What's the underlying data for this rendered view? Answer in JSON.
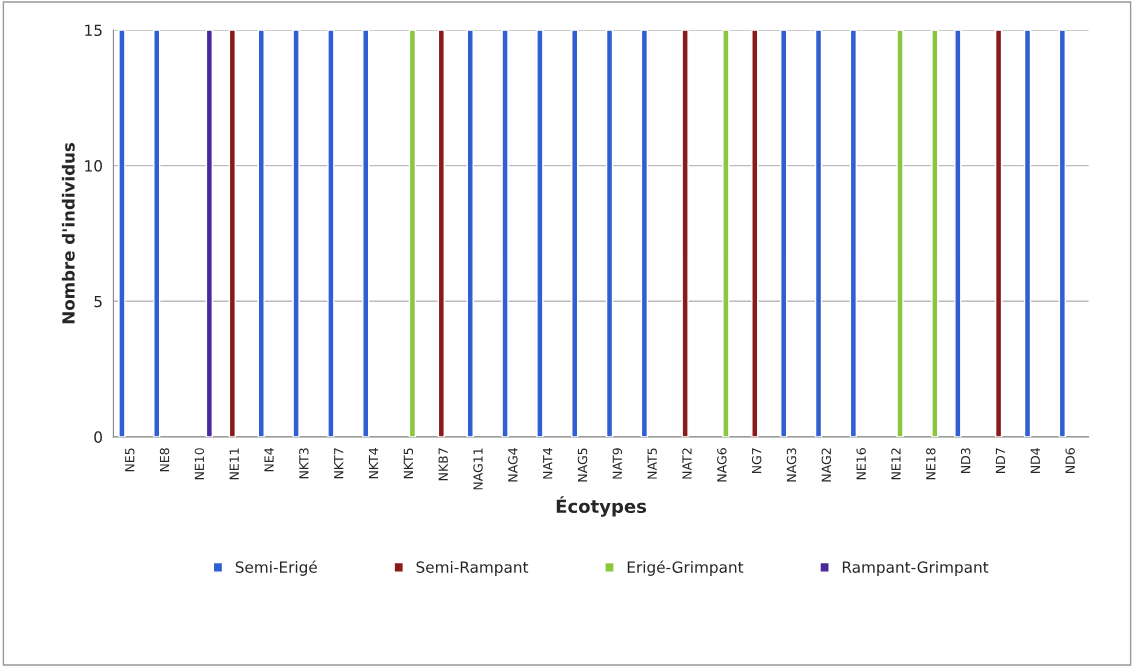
{
  "chart_data": {
    "type": "bar",
    "xlabel": "Écotypes",
    "ylabel": "Nombre d'individus",
    "categories": [
      "NE5",
      "NE8",
      "NE10",
      "NE11",
      "NE4",
      "NKT3",
      "NKT7",
      "NKT4",
      "NKT5",
      "NKB7",
      "NAG11",
      "NAG4",
      "NAT4",
      "NAG5",
      "NAT9",
      "NAT5",
      "NAT2",
      "NAG6",
      "NG7",
      "NAG3",
      "NAG2",
      "NE16",
      "NE12",
      "NE18",
      "ND3",
      "ND7",
      "ND4",
      "ND6"
    ],
    "series": [
      {
        "name": "Semi-Erigé",
        "color": "#2f5fd0",
        "values": [
          15,
          15,
          null,
          null,
          15,
          15,
          15,
          15,
          null,
          null,
          15,
          15,
          15,
          15,
          15,
          15,
          null,
          null,
          null,
          15,
          15,
          15,
          null,
          null,
          15,
          null,
          15,
          15
        ]
      },
      {
        "name": "Semi-Rampant",
        "color": "#8b1a1a",
        "values": [
          null,
          null,
          null,
          15,
          null,
          null,
          null,
          null,
          null,
          15,
          null,
          null,
          null,
          null,
          null,
          null,
          15,
          null,
          15,
          null,
          null,
          null,
          null,
          null,
          null,
          15,
          null,
          null
        ]
      },
      {
        "name": "Erigé-Grimpant",
        "color": "#8cc63f",
        "values": [
          null,
          null,
          null,
          null,
          null,
          null,
          null,
          null,
          15,
          null,
          null,
          null,
          null,
          null,
          null,
          null,
          null,
          15,
          null,
          null,
          null,
          null,
          15,
          15,
          null,
          null,
          null,
          null
        ]
      },
      {
        "name": "Rampant-Grimpant",
        "color": "#4a2a9a",
        "values": [
          null,
          null,
          15,
          null,
          null,
          null,
          null,
          null,
          null,
          null,
          null,
          null,
          null,
          null,
          null,
          null,
          null,
          null,
          null,
          null,
          null,
          null,
          null,
          null,
          null,
          null,
          null,
          null
        ]
      }
    ],
    "ylim": [
      0,
      15
    ],
    "yticks": [
      0,
      5,
      10,
      15
    ],
    "grid": "y",
    "legend": "bottom"
  }
}
